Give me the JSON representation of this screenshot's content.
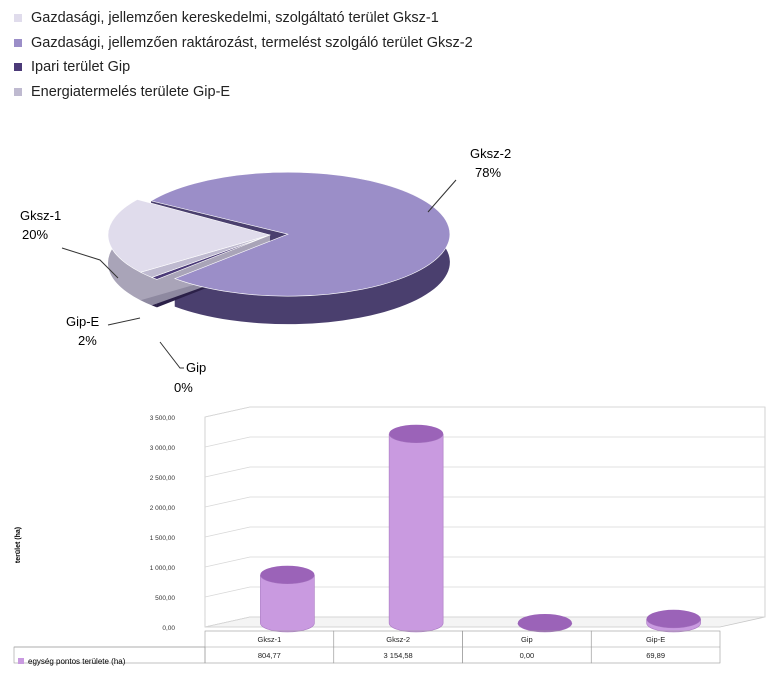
{
  "chart_data": [
    {
      "type": "pie",
      "series": [
        {
          "name": "Gazdasági, jellemzően kereskedelmi, szolgáltató terület Gksz-1",
          "short": "Gksz-1",
          "pct_label": "20%",
          "value": 804.77,
          "color": "#e0dcec",
          "side": "#a9a4b8"
        },
        {
          "name": "Gazdasági, jellemzően raktározást, termelést szolgáló terület Gksz-2",
          "short": "Gksz-2",
          "pct_label": "78%",
          "value": 3154.58,
          "color": "#9b8ec8",
          "side": "#4a3f6e"
        },
        {
          "name": "Ipari terület Gip",
          "short": "Gip",
          "pct_label": "0%",
          "value": 0.0,
          "color": "#4b3a78",
          "side": "#2b2048"
        },
        {
          "name": "Energiatermelés területe Gip-E",
          "short": "Gip-E",
          "pct_label": "2%",
          "value": 69.89,
          "color": "#bfbad0",
          "side": "#8e89a0"
        }
      ]
    },
    {
      "type": "bar",
      "ylabel": "terület (ha)",
      "ylim": [
        0,
        3500
      ],
      "yticks": [
        "0,00",
        "500,00",
        "1 000,00",
        "1 500,00",
        "2 000,00",
        "2 500,00",
        "3 000,00",
        "3 500,00"
      ],
      "categories": [
        "Gksz-1",
        "Gksz-2",
        "Gip",
        "Gip-E"
      ],
      "series": [
        {
          "name": "egység pontos területe (ha)",
          "values": [
            804.77,
            3154.58,
            0.0,
            69.89
          ],
          "value_labels": [
            "804,77",
            "3 154,58",
            "0,00",
            "69,89"
          ]
        }
      ],
      "bar_color": "#c99ae0"
    }
  ]
}
